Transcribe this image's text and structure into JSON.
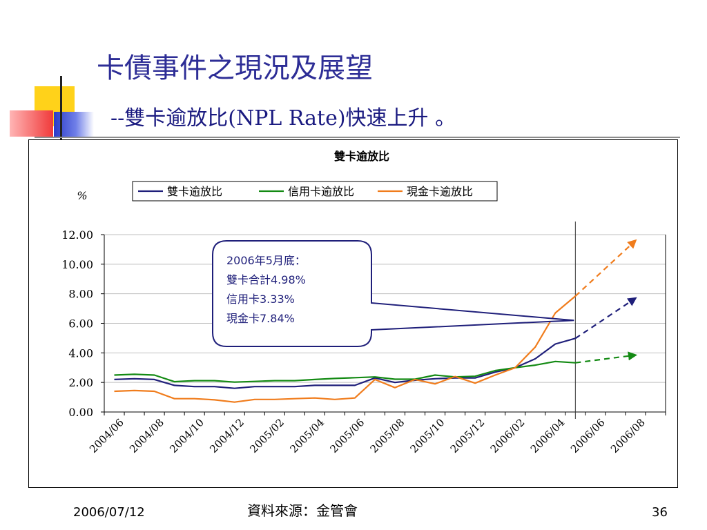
{
  "slide": {
    "title": "卡債事件之現況及展望",
    "subtitle": "--雙卡逾放比(NPL Rate)快速上升 。",
    "footer_date": "2006/07/12",
    "footer_source": "資料來源：金管會",
    "page_number": "36"
  },
  "chart_data": {
    "type": "line",
    "title": "雙卡逾放比",
    "ylabel": "%",
    "ylim": [
      0,
      12
    ],
    "yticks": [
      "0.00",
      "2.00",
      "4.00",
      "6.00",
      "8.00",
      "10.00",
      "12.00"
    ],
    "xtick_labels": [
      "2004/06",
      "2004/08",
      "2004/10",
      "2004/12",
      "2005/02",
      "2005/04",
      "2005/06",
      "2005/08",
      "2005/10",
      "2005/12",
      "2006/02",
      "2006/04",
      "2006/06",
      "2006/08"
    ],
    "months": [
      "2004/06",
      "2004/07",
      "2004/08",
      "2004/09",
      "2004/10",
      "2004/11",
      "2004/12",
      "2005/01",
      "2005/02",
      "2005/03",
      "2005/04",
      "2005/05",
      "2005/06",
      "2005/07",
      "2005/08",
      "2005/09",
      "2005/10",
      "2005/11",
      "2005/12",
      "2006/01",
      "2006/02",
      "2006/03",
      "2006/04",
      "2006/05"
    ],
    "grid": true,
    "legend_position": "top",
    "series": [
      {
        "name": "雙卡逾放比",
        "color": "#1f1f7a",
        "values": [
          2.2,
          2.25,
          2.2,
          1.8,
          1.72,
          1.72,
          1.6,
          1.72,
          1.72,
          1.72,
          1.8,
          1.8,
          1.8,
          2.3,
          2.0,
          2.15,
          2.25,
          2.3,
          2.3,
          2.7,
          3.0,
          3.6,
          4.6,
          4.98
        ],
        "projection": {
          "to_month": "2006/08",
          "to_value": 7.7
        }
      },
      {
        "name": "信用卡逾放比",
        "color": "#138a13",
        "values": [
          2.5,
          2.55,
          2.5,
          2.05,
          2.12,
          2.12,
          2.02,
          2.07,
          2.12,
          2.12,
          2.2,
          2.27,
          2.32,
          2.37,
          2.22,
          2.22,
          2.5,
          2.37,
          2.42,
          2.8,
          3.0,
          3.17,
          3.42,
          3.33
        ],
        "projection": {
          "to_month": "2006/08",
          "to_value": 3.85
        }
      },
      {
        "name": "現金卡逾放比",
        "color": "#f07c1c",
        "values": [
          1.4,
          1.45,
          1.4,
          0.9,
          0.9,
          0.82,
          0.67,
          0.85,
          0.85,
          0.9,
          0.95,
          0.85,
          0.95,
          2.2,
          1.65,
          2.2,
          1.9,
          2.4,
          1.95,
          2.5,
          3.0,
          4.4,
          6.7,
          7.84
        ],
        "projection": {
          "to_month": "2006/08",
          "to_value": 11.6
        }
      }
    ],
    "marker_month": "2006/05",
    "callout": {
      "lines": [
        "2006年5月底：",
        "雙卡合計4.98%",
        "信用卡3.33%",
        "現金卡7.84%"
      ],
      "target_value": 6.2
    }
  },
  "colors": {
    "title": "#2d2d96",
    "callout_border": "#1f1f7a",
    "callout_text": "#1f1f7a",
    "grid": "#bfbfbf",
    "deco_yellow": "#ffd21a",
    "deco_blue": "#2b3bc8",
    "deco_red": "#f03a3a"
  }
}
